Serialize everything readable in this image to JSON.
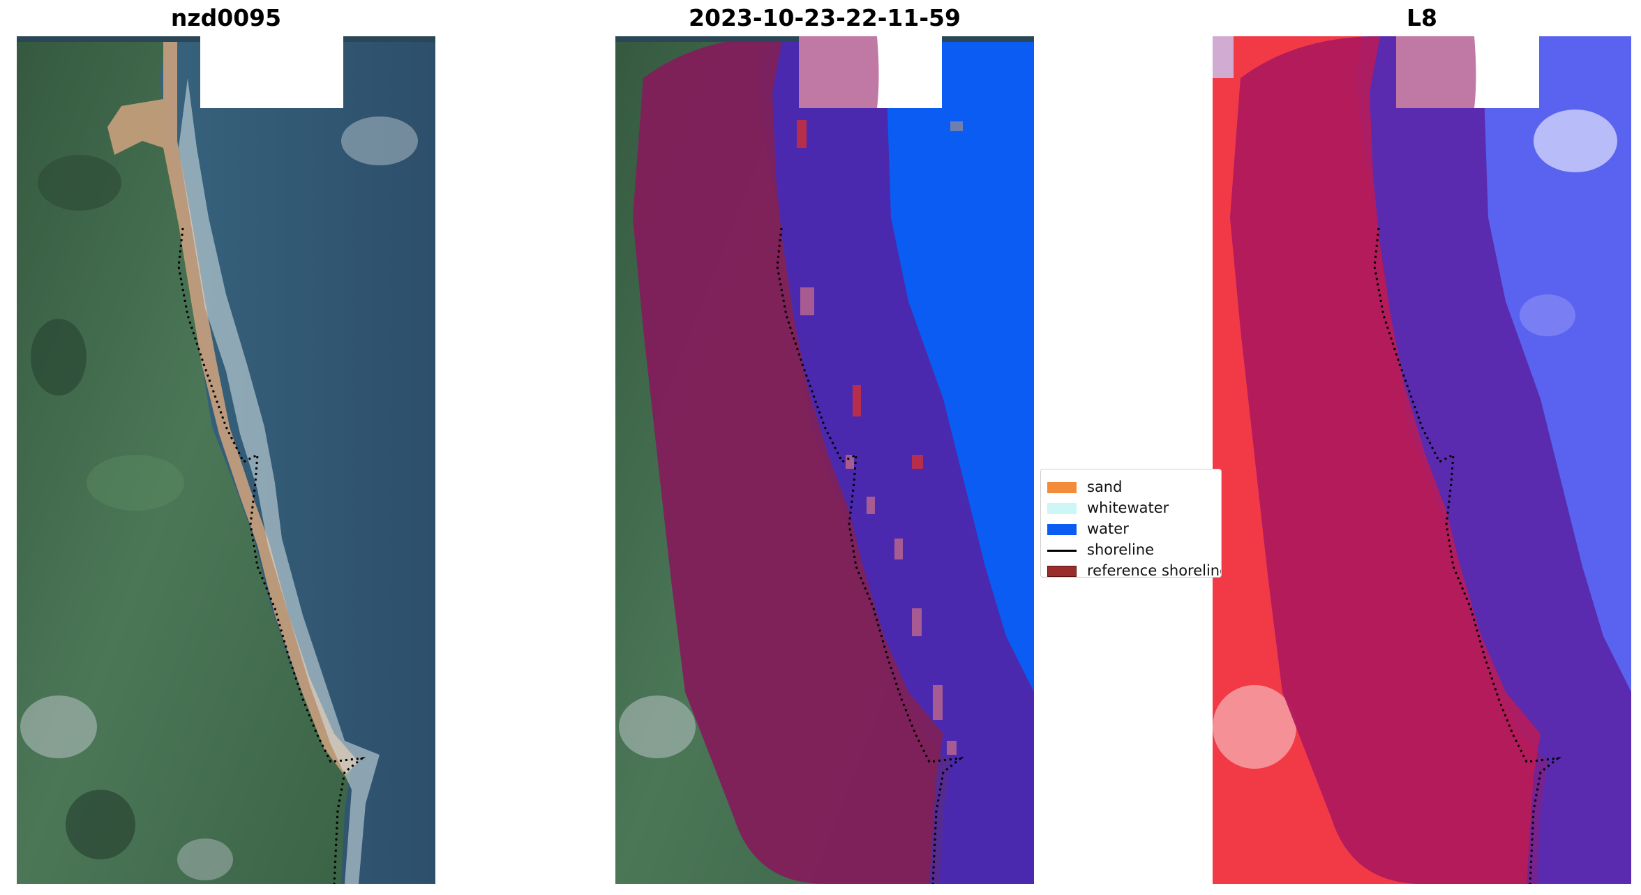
{
  "panels": [
    {
      "title": "nzd0095"
    },
    {
      "title": "2023-10-23-22-11-59"
    },
    {
      "title": "L8"
    }
  ],
  "legend": {
    "items": [
      {
        "label": "sand",
        "color": "#f28c3a"
      },
      {
        "label": "whitewater",
        "color": "#cdf7f7"
      },
      {
        "label": "water",
        "color": "#0a5cf2"
      },
      {
        "label": "shoreline",
        "color": "#000000"
      },
      {
        "label": "reference shoreline",
        "color": "#9b2c2c"
      }
    ]
  },
  "colors": {
    "land": "#3f6b4a",
    "sea": "#2f5674",
    "sand": "#c9a07c",
    "buffer_overlay": "#8a1f4a",
    "water_class": "#0a5cf2",
    "ocean_overlay": "#5a1fa0",
    "ndwi_land": "#f23a46",
    "ndwi_water": "#4d5cf2"
  }
}
